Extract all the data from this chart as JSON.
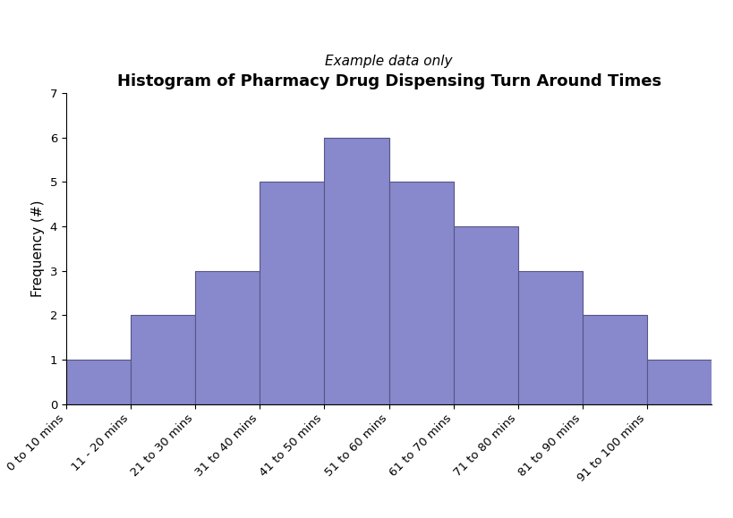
{
  "title": "Histogram of Pharmacy Drug Dispensing Turn Around Times",
  "subtitle": "Example data only",
  "ylabel": "Frequency (#)",
  "categories": [
    "0 to 10 mins",
    "11 - 20 mins",
    "21 to 30 mins",
    "31 to 40 mins",
    "41 to 50 mins",
    "51 to 60 mins",
    "61 to 70 mins",
    "71 to 80 mins",
    "81 to 90 mins",
    "91 to 100 mins"
  ],
  "values": [
    1,
    2,
    3,
    5,
    6,
    5,
    4,
    3,
    2,
    1
  ],
  "bar_color": "#8888cc",
  "bar_edge_color": "#555588",
  "ylim": [
    0,
    7
  ],
  "yticks": [
    0,
    1,
    2,
    3,
    4,
    5,
    6,
    7
  ],
  "title_fontsize": 13,
  "subtitle_fontsize": 11,
  "ylabel_fontsize": 11,
  "tick_fontsize": 9.5,
  "background_color": "#ffffff"
}
